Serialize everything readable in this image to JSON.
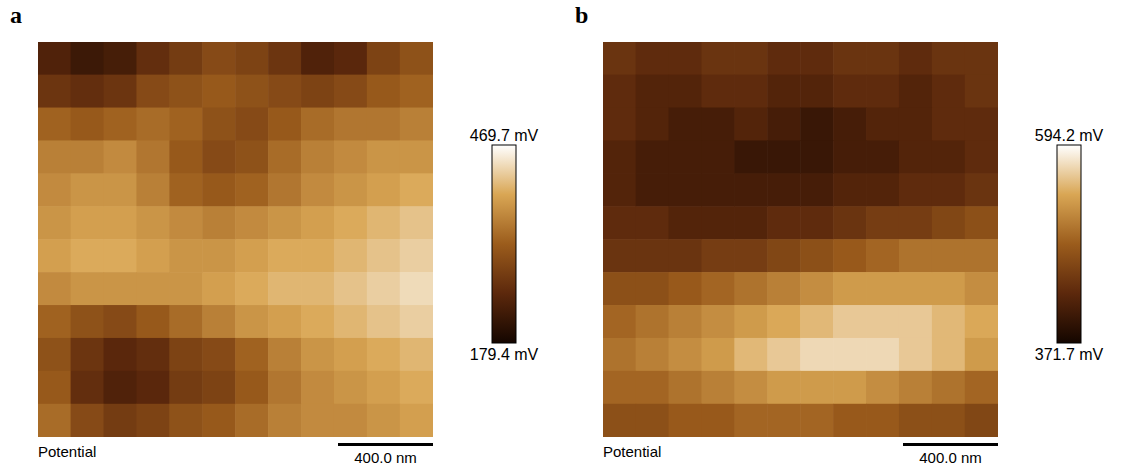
{
  "chart_data": [
    {
      "type": "heatmap",
      "panel": "a",
      "title": "Potential",
      "scale_bar": "400.0 nm",
      "tick_labels": false,
      "cells": [
        [
          240,
          220,
          230,
          260,
          280,
          300,
          290,
          270,
          240,
          250,
          290,
          310
        ],
        [
          270,
          260,
          270,
          300,
          310,
          320,
          310,
          300,
          290,
          300,
          320,
          330
        ],
        [
          330,
          320,
          330,
          340,
          330,
          310,
          300,
          320,
          340,
          350,
          350,
          360
        ],
        [
          360,
          360,
          370,
          350,
          320,
          300,
          310,
          340,
          360,
          370,
          380,
          380
        ],
        [
          370,
          380,
          380,
          360,
          330,
          320,
          330,
          350,
          370,
          380,
          390,
          400
        ],
        [
          380,
          390,
          390,
          380,
          370,
          360,
          370,
          380,
          390,
          400,
          410,
          420
        ],
        [
          390,
          400,
          400,
          390,
          380,
          380,
          390,
          400,
          400,
          410,
          420,
          430
        ],
        [
          370,
          380,
          380,
          380,
          380,
          390,
          400,
          410,
          410,
          420,
          430,
          440
        ],
        [
          330,
          310,
          300,
          320,
          340,
          360,
          380,
          390,
          400,
          410,
          420,
          430
        ],
        [
          310,
          270,
          250,
          260,
          290,
          300,
          330,
          360,
          380,
          390,
          400,
          410
        ],
        [
          320,
          260,
          240,
          250,
          280,
          290,
          320,
          350,
          370,
          380,
          390,
          400
        ],
        [
          340,
          300,
          280,
          290,
          310,
          320,
          340,
          360,
          370,
          370,
          380,
          390
        ]
      ],
      "colorbar": {
        "range": [
          179.4,
          469.7
        ],
        "ticks": [
          {
            "value": 469.7,
            "label": "469.7 mV"
          },
          {
            "value": 179.4,
            "label": "179.4 mV"
          }
        ]
      }
    },
    {
      "type": "heatmap",
      "panel": "b",
      "title": "Potential",
      "scale_bar": "400.0 nm",
      "tick_labels": false,
      "cells": [
        [
          440,
          430,
          430,
          440,
          440,
          430,
          430,
          440,
          440,
          430,
          440,
          440
        ],
        [
          430,
          420,
          420,
          430,
          430,
          420,
          420,
          430,
          430,
          420,
          430,
          440
        ],
        [
          430,
          420,
          410,
          410,
          420,
          410,
          400,
          410,
          420,
          420,
          430,
          430
        ],
        [
          420,
          410,
          410,
          410,
          400,
          400,
          400,
          410,
          410,
          420,
          420,
          430
        ],
        [
          420,
          410,
          410,
          410,
          410,
          410,
          410,
          420,
          420,
          430,
          430,
          440
        ],
        [
          430,
          430,
          420,
          420,
          420,
          430,
          430,
          440,
          450,
          450,
          460,
          470
        ],
        [
          440,
          440,
          440,
          450,
          450,
          460,
          470,
          480,
          490,
          500,
          500,
          500
        ],
        [
          470,
          470,
          480,
          490,
          500,
          510,
          520,
          530,
          530,
          530,
          530,
          520
        ],
        [
          490,
          500,
          510,
          520,
          530,
          540,
          550,
          560,
          560,
          560,
          550,
          540
        ],
        [
          500,
          510,
          520,
          530,
          550,
          560,
          570,
          570,
          570,
          560,
          550,
          530
        ],
        [
          490,
          490,
          500,
          510,
          520,
          530,
          530,
          530,
          520,
          510,
          500,
          490
        ],
        [
          470,
          470,
          480,
          480,
          490,
          490,
          490,
          480,
          480,
          470,
          470,
          460
        ]
      ],
      "colorbar": {
        "range": [
          371.7,
          594.2
        ],
        "ticks": [
          {
            "value": 594.2,
            "label": "594.2 mV"
          },
          {
            "value": 371.7,
            "label": "371.7 mV"
          }
        ]
      }
    }
  ]
}
